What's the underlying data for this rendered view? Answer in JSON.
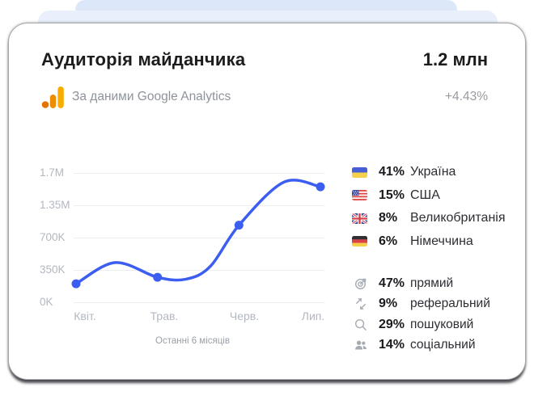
{
  "header": {
    "title": "Аудиторія майданчика",
    "value": "1.2 млн",
    "subtitle": "За даними Google Analytics",
    "delta": "+4.43%",
    "analytics_icon": "google-analytics-icon",
    "analytics_colors": {
      "dot": "#E37400",
      "mid": "#EE8C00",
      "tall": "#F9AB00"
    }
  },
  "chart_data": {
    "type": "line",
    "title": "",
    "xlabel": "",
    "ylabel": "",
    "categories": [
      "Квіт.",
      "Трав.",
      "Черв.",
      "Лип."
    ],
    "values": [
      200000,
      270000,
      950000,
      1550000
    ],
    "y_ticks": {
      "labels": [
        "0K",
        "350K",
        "700K",
        "1.35M",
        "1.7M"
      ],
      "values": [
        0,
        350000,
        700000,
        1350000,
        1700000
      ]
    },
    "ylim": [
      0,
      1700000
    ],
    "grid": true,
    "legend_position": "none",
    "line_color": "#3B5EF0",
    "caption": "Останні 6 місяців",
    "curve_samples": [
      {
        "t": 0.0,
        "v": 200000
      },
      {
        "t": 0.16,
        "v": 430000
      },
      {
        "t": 0.333,
        "v": 270000
      },
      {
        "t": 0.45,
        "v": 250000
      },
      {
        "t": 0.55,
        "v": 390000
      },
      {
        "t": 0.667,
        "v": 950000
      },
      {
        "t": 0.85,
        "v": 1600000
      },
      {
        "t": 1.0,
        "v": 1550000
      }
    ]
  },
  "countries": [
    {
      "flag": "ukraine-flag-icon",
      "percent": "41%",
      "name": "Україна"
    },
    {
      "flag": "usa-flag-icon",
      "percent": "15%",
      "name": "США"
    },
    {
      "flag": "uk-flag-icon",
      "percent": "8%",
      "name": "Великобританія"
    },
    {
      "flag": "germany-flag-icon",
      "percent": "6%",
      "name": "Німеччина"
    }
  ],
  "sources": [
    {
      "icon": "target-icon",
      "percent": "47%",
      "name": "прямий"
    },
    {
      "icon": "referral-icon",
      "percent": "9%",
      "name": "реферальний"
    },
    {
      "icon": "search-icon",
      "percent": "29%",
      "name": "пошуковий"
    },
    {
      "icon": "social-icon",
      "percent": "14%",
      "name": "соціальний"
    }
  ]
}
